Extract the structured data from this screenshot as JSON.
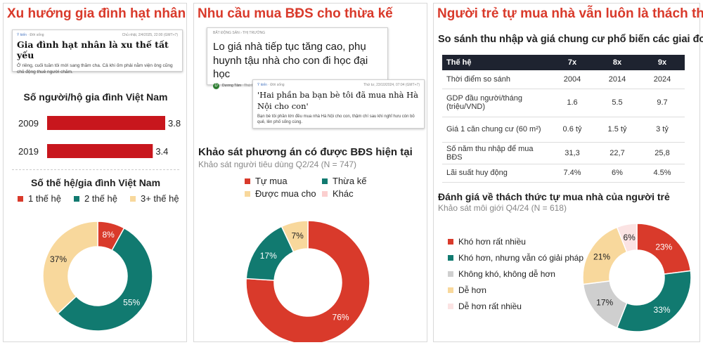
{
  "colors": {
    "red": "#d93a2b",
    "teal": "#117a70",
    "gray": "#cfcfcf",
    "sand": "#f8d89c",
    "pink": "#fbe3e3",
    "dark": "#1e2330"
  },
  "panel1": {
    "title": "Xu hướng gia đình hạt nhân",
    "article": {
      "tag": "Ý kiến",
      "section": "Đời sống",
      "date": "Chủ nhật, 2/4/2025, 22:00 (GMT+7)",
      "headline": "Gia đình hạt nhân là xu thế tất yếu",
      "body": "Ở riêng, cuối tuần tôi mới sang thăm cha. Cả khi ốm phải nằm viện ông cũng chủ động thuê người chăm."
    },
    "bar_title": "Số người/hộ gia đình Việt Nam",
    "donut_title": "Số thế hệ/gia đình Việt Nam"
  },
  "panel2": {
    "title": "Nhu cầu mua BĐS cho thừa kế",
    "article1": {
      "section": "BẤT ĐỘNG SẢN › THỊ TRƯỜNG",
      "headline": "Lo giá nhà tiếp tục tăng cao, phụ huynh tậu nhà cho con đi học đại học",
      "author": "Dương Tâm",
      "date": "Thứ hai, 19/09/2024, 07:00"
    },
    "article2": {
      "tag": "Ý kiến",
      "section": "Đời sống",
      "date": "Thứ tư, 23/10/2024, 07:04 (GMT+7)",
      "headline": "'Hai phần ba bạn bè tôi đã mua nhà Hà Nội cho con'",
      "body": "Bạn bè tôi phần lớn đều mua nhà Hà Nội cho con, thậm chí sau khi nghỉ hưu còn bỏ quê, lên phố sống cùng."
    },
    "survey_title": "Khảo sát phương án có được BĐS hiện tại",
    "survey_sub": "Khảo sát người tiêu dùng Q2/24 (N = 747)"
  },
  "panel3": {
    "title": "Người trẻ tự mua nhà vẫn luôn là thách thức",
    "table_title": "So sánh thu nhập và giá chung cư phổ biến các giai đoạn",
    "table": {
      "headers": [
        "Thế hệ",
        "7x",
        "8x",
        "9x"
      ],
      "rows": [
        [
          "Thời điểm so sánh",
          "2004",
          "2014",
          "2024"
        ],
        [
          "GDP đầu người/tháng (triệu/VND)",
          "1.6",
          "5.5",
          "9.7"
        ],
        [
          "Giá 1 căn chung cư (60 m²)",
          "0.6 tỷ",
          "1.5 tỷ",
          "3 tỷ"
        ],
        [
          "Số năm thu nhập để mua BĐS",
          "31,3",
          "22,7",
          "25,8"
        ],
        [
          "Lãi suất huy động",
          "7.4%",
          "6%",
          "4.5%"
        ]
      ]
    },
    "survey_title": "Đánh giá về thách thức tự mua nhà của người trẻ",
    "survey_sub": "Khảo sát môi giới Q4/24 (N = 618)"
  },
  "chart_data": [
    {
      "type": "bar",
      "title": "Số người/hộ gia đình Việt Nam",
      "categories": [
        "2009",
        "2019"
      ],
      "values": [
        3.8,
        3.4
      ],
      "value_labels": [
        "3.8",
        "3.4"
      ],
      "color": "#c8161d"
    },
    {
      "type": "pie",
      "title": "Số thế hệ/gia đình Việt Nam",
      "categories": [
        "1 thế hệ",
        "2 thế hệ",
        "3+ thế hệ"
      ],
      "values": [
        8,
        55,
        37
      ],
      "labels": [
        "8%",
        "55%",
        "37%"
      ],
      "colors": [
        "#d93a2b",
        "#117a70",
        "#f8d89c"
      ],
      "legend": "top"
    },
    {
      "type": "pie",
      "title": "Khảo sát phương án có được BĐS hiện tại",
      "categories": [
        "Tự mua",
        "Thừa kế",
        "Được mua cho",
        "Khác"
      ],
      "values": [
        76,
        17,
        7,
        0
      ],
      "labels": [
        "76%",
        "17%",
        "7%",
        ""
      ],
      "colors": [
        "#d93a2b",
        "#117a70",
        "#f8d89c",
        "#fbcfcf"
      ],
      "legend": "top"
    },
    {
      "type": "pie",
      "title": "Đánh giá về thách thức tự mua nhà của người trẻ",
      "categories": [
        "Khó hơn rất nhiều",
        "Khó hơn, nhưng vẫn có giải pháp",
        "Không khó, không dễ hơn",
        "Dễ hơn",
        "Dễ hơn rất nhiều"
      ],
      "values": [
        23,
        33,
        17,
        21,
        6
      ],
      "labels": [
        "23%",
        "33%",
        "17%",
        "21%",
        "6%"
      ],
      "colors": [
        "#d93a2b",
        "#117a70",
        "#cfcfcf",
        "#f8d89c",
        "#fbe3e3"
      ],
      "legend": "left"
    }
  ]
}
